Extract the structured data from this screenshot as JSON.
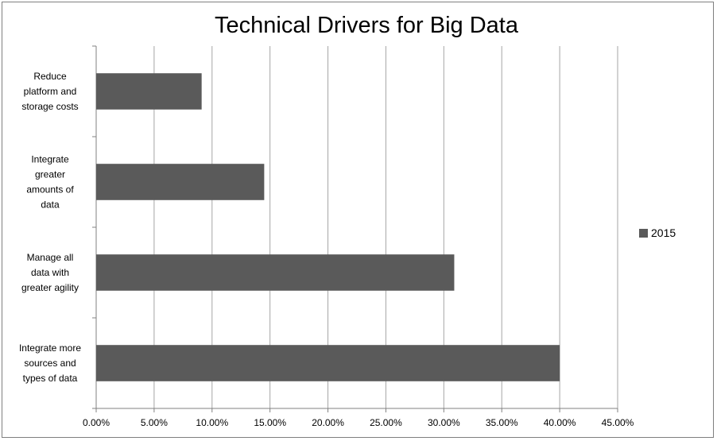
{
  "chart_data": {
    "type": "bar",
    "orientation": "horizontal",
    "title": "Technical Drivers for Big Data",
    "categories": [
      "Reduce platform and storage costs",
      "Integrate greater amounts of data",
      "Manage all data with greater agility",
      "Integrate more sources and types of data"
    ],
    "category_lines": [
      [
        "Reduce",
        "platform and",
        "storage costs"
      ],
      [
        "Integrate",
        "greater",
        "amounts of",
        "data"
      ],
      [
        "Manage all",
        "data with",
        "greater agility"
      ],
      [
        "Integrate more",
        "sources and",
        "types of data"
      ]
    ],
    "series": [
      {
        "name": "2015",
        "values": [
          0.091,
          0.145,
          0.309,
          0.4
        ]
      }
    ],
    "xlim": [
      0,
      0.45
    ],
    "x_ticks": [
      0,
      0.05,
      0.1,
      0.15,
      0.2,
      0.25,
      0.3,
      0.35,
      0.4,
      0.45
    ],
    "x_tick_labels": [
      "0.00%",
      "5.00%",
      "10.00%",
      "15.00%",
      "20.00%",
      "25.00%",
      "30.00%",
      "35.00%",
      "40.00%",
      "45.00%"
    ],
    "xlabel": "",
    "ylabel": "",
    "grid": "vertical",
    "legend_position": "right",
    "colors": {
      "bar": "#5a5a5a",
      "grid": "#a6a6a6",
      "axis": "#808080"
    }
  }
}
